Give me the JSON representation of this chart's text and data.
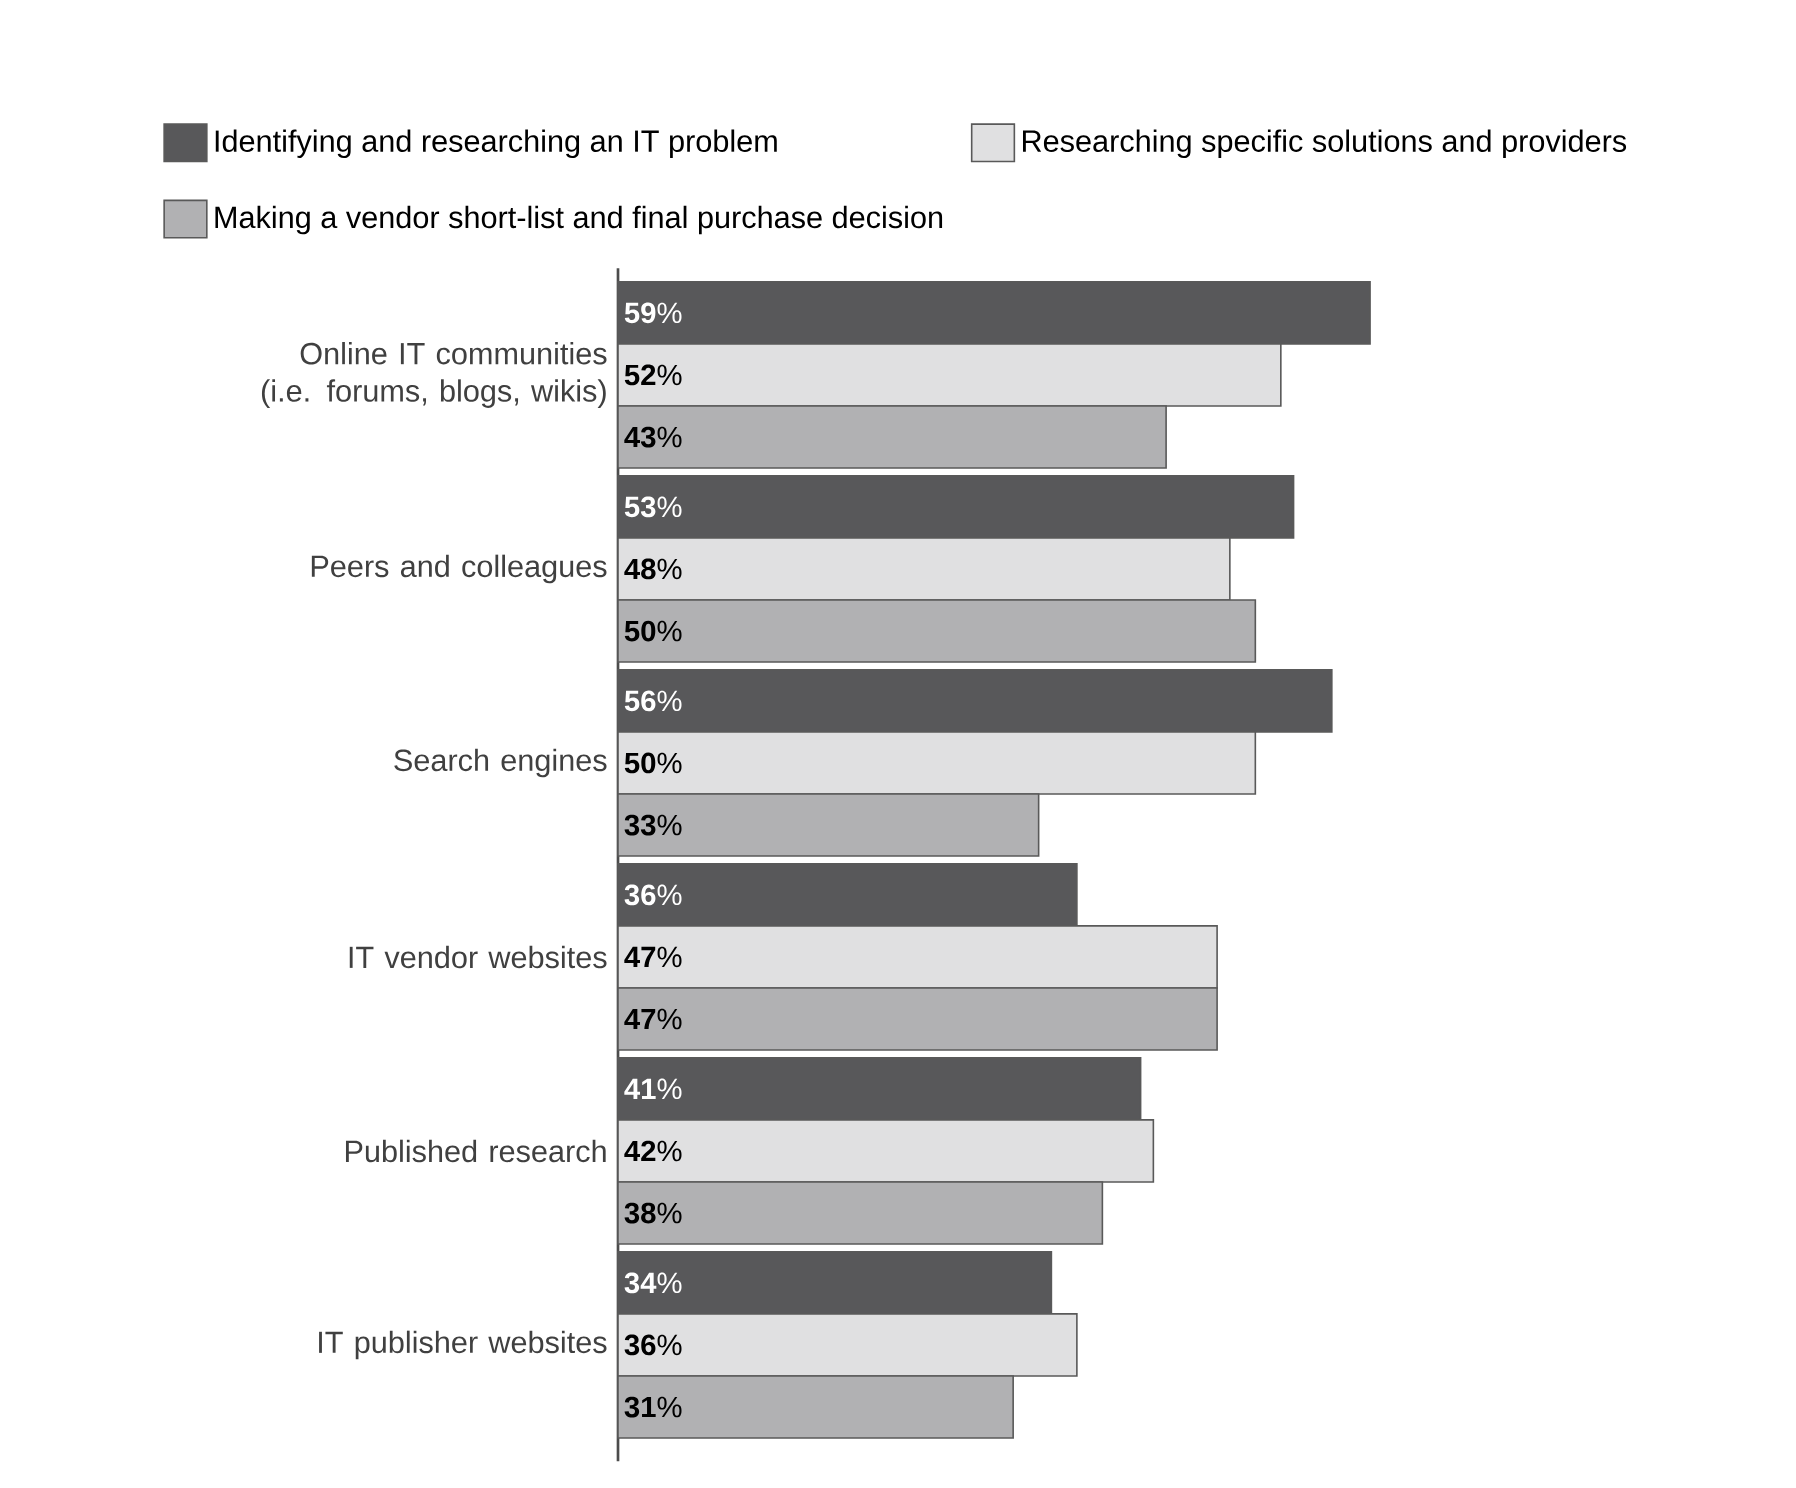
{
  "chart_data": {
    "type": "bar",
    "orientation": "horizontal",
    "legend": "top",
    "data_labels": true,
    "categories": [
      "Online IT communities (i.e. forums, blogs, wikis)",
      "Peers and colleagues",
      "Search engines",
      "IT vendor websites",
      "Published research",
      "IT publisher websites"
    ],
    "series": [
      {
        "name": "Identifying and researching an IT problem",
        "color": "#58585a",
        "values": [
          59,
          53,
          56,
          36,
          41,
          34
        ],
        "value_labels": [
          "**59**%",
          "**53**%",
          "**56**%",
          "**36**%",
          "**41**%",
          "**34**%"
        ]
      },
      {
        "name": "Researching specific solutions and providers",
        "color": "#e0e0e1",
        "values": [
          52,
          48,
          50,
          47,
          42,
          36
        ],
        "value_labels": [
          "**52**%",
          "**48**%",
          "**50**%",
          "**47**%",
          "**42**%",
          "**36**%"
        ]
      },
      {
        "name": "Making a vendor short-list and final purchase decision",
        "color": "#b1b1b3",
        "values": [
          43,
          50,
          33,
          47,
          38,
          31
        ],
        "value_labels": [
          "**43**%",
          "**50**%",
          "**33**%",
          "**47**%",
          "**38**%",
          "**31**%"
        ]
      }
    ]
  }
}
